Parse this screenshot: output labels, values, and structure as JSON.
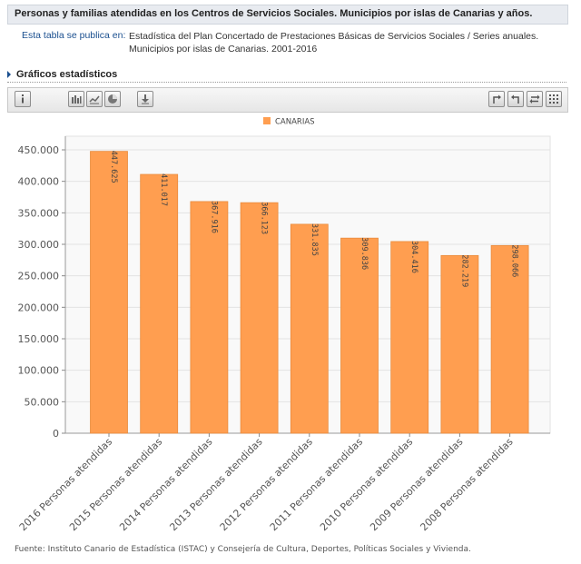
{
  "header": {
    "title": "Personas y familias atendidas en los Centros de Servicios Sociales. Municipios por islas de Canarias y años.",
    "published_label": "Esta tabla se publica en:",
    "published_value": "Estadística del Plan Concertado de Prestaciones Básicas de Servicios Sociales / Series anuales. Municipios por islas de Canarias. 2001-2016"
  },
  "section": {
    "title": "Gráficos estadísticos"
  },
  "toolbar": {
    "buttons": [
      "info-icon",
      "bar-chart-icon",
      "line-chart-icon",
      "pie-chart-icon",
      "download-icon",
      "rotate-icon",
      "undo-icon",
      "swap-icon",
      "grid-icon"
    ]
  },
  "chart_data": {
    "type": "bar",
    "categories": [
      "2016 Personas atendidas",
      "2015 Personas atendidas",
      "2014 Personas atendidas",
      "2013 Personas atendidas",
      "2012 Personas atendidas",
      "2011 Personas atendidas",
      "2010 Personas atendidas",
      "2009 Personas atendidas",
      "2008 Personas atendidas"
    ],
    "series": [
      {
        "name": "CANARIAS",
        "values": [
          447625,
          411017,
          367916,
          366123,
          331835,
          309836,
          304416,
          282219,
          298066
        ],
        "labels": [
          "447.625",
          "411.017",
          "367.916",
          "366.123",
          "331.835",
          "309.836",
          "304.416",
          "282.219",
          "298.066"
        ]
      }
    ],
    "ylim": [
      0,
      450000
    ],
    "yticks": [
      0,
      50000,
      100000,
      150000,
      200000,
      250000,
      300000,
      350000,
      400000,
      450000
    ],
    "ytick_labels": [
      "0",
      "50.000",
      "100.000",
      "150.000",
      "200.000",
      "250.000",
      "300.000",
      "350.000",
      "400.000",
      "450.000"
    ],
    "legend_position": "top-center",
    "grid": true,
    "colors": {
      "bar": "#ff9e50",
      "bar_stroke": "#e98b3c",
      "legend": "#ff9e50"
    }
  },
  "footer": {
    "source": "Fuente: Instituto Canario de Estadística (ISTAC) y Consejería de Cultura, Deportes, Políticas Sociales y Vivienda."
  }
}
